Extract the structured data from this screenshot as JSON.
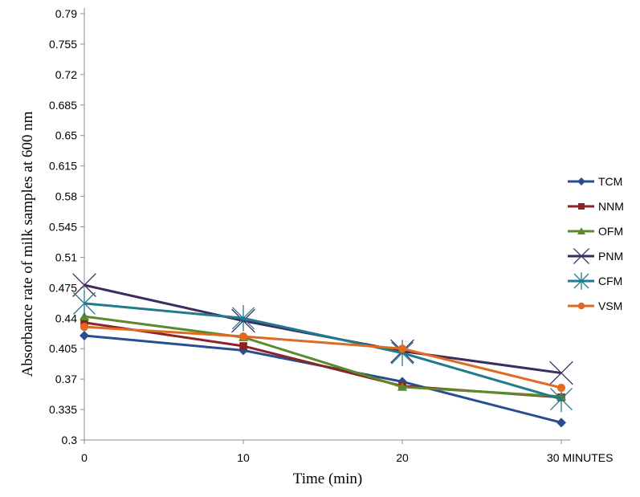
{
  "chart_data": {
    "type": "line",
    "title": "",
    "xlabel": "Time (min)",
    "ylabel": "Absorbance rate of milk samples at 600 nm",
    "categories": [
      "0",
      "10",
      "20",
      "30 MINUTES"
    ],
    "y_ticks": [
      "0.79",
      "0.755",
      "0.72",
      "0.685",
      "0.65",
      "0.615",
      "0.58",
      "0.545",
      "0.51",
      "0.475",
      "0.44",
      "0.405",
      "0.37",
      "0.335",
      "0.3"
    ],
    "ylim": [
      0.3,
      0.79
    ],
    "grid": false,
    "legend_position": "right",
    "series": [
      {
        "name": "TCM",
        "color": "#2a4d8f",
        "marker": "diamond",
        "values": [
          0.42,
          0.403,
          0.367,
          0.32
        ]
      },
      {
        "name": "NNM",
        "color": "#8b2525",
        "marker": "square",
        "values": [
          0.435,
          0.408,
          0.362,
          0.349
        ]
      },
      {
        "name": "OFM",
        "color": "#5b8a2a",
        "marker": "triangle",
        "values": [
          0.442,
          0.418,
          0.361,
          0.35
        ]
      },
      {
        "name": "PNM",
        "color": "#3e2a5e",
        "marker": "x",
        "values": [
          0.478,
          0.437,
          0.402,
          0.377
        ]
      },
      {
        "name": "CFM",
        "color": "#1f7a8c",
        "marker": "star",
        "values": [
          0.457,
          0.44,
          0.4,
          0.347
        ]
      },
      {
        "name": "VSM",
        "color": "#e06a22",
        "marker": "circle",
        "values": [
          0.43,
          0.419,
          0.405,
          0.36
        ]
      }
    ]
  }
}
